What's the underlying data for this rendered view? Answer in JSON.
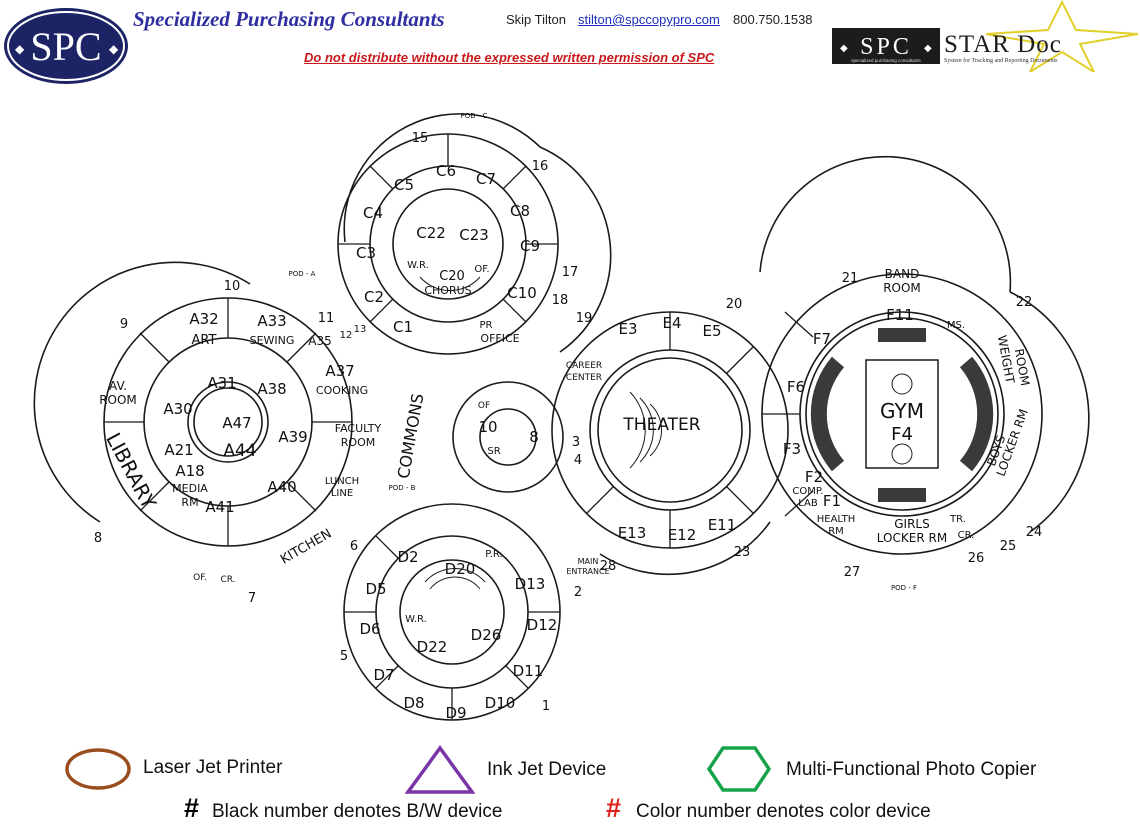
{
  "header": {
    "company_name": "Specialized Purchasing Consultants",
    "contact_name": "Skip Tilton",
    "contact_email": "stilton@spccopypro.com",
    "contact_phone": "800.750.1538",
    "notice": "Do not distribute without the expressed written permission of SPC",
    "logo_text": "SPC",
    "stardoc_logo_text": "STAR Doc",
    "stardoc_spc_text": "SPC",
    "stardoc_tagline": "System for Tracking and Reporting Documents",
    "stardoc_sub": "specialized purchasing consultants"
  },
  "rooms": {
    "pod_a": [
      "A32",
      "ART",
      "A33",
      "SEWING",
      "A35",
      "A37",
      "COOKING",
      "A31",
      "A38",
      "A30",
      "A47",
      "A44",
      "A39",
      "A21",
      "A18",
      "MEDIA",
      "RM",
      "A41",
      "A40",
      "AV.",
      "ROOM",
      "LIBRARY",
      "KITCHEN",
      "LUNCH",
      "LINE",
      "FACULTY",
      "ROOM",
      "OF.",
      "CR."
    ],
    "pod_c": [
      "C5",
      "C6",
      "C7",
      "C8",
      "C4",
      "C22",
      "C23",
      "C9",
      "C3",
      "C2",
      "C20",
      "CHORUS",
      "W.R.",
      "OF.",
      "C10",
      "C1",
      "PR",
      "OFFICE"
    ],
    "pod_e": [
      "E3",
      "E4",
      "E5",
      "THEATER",
      "E13",
      "E12",
      "E11",
      "CAREER",
      "CENTER",
      "10",
      "8",
      "SR",
      "OF"
    ],
    "pod_f": [
      "BAND",
      "ROOM",
      "F11",
      "MS.",
      "F7",
      "F6",
      "GYM",
      "F4",
      "F3",
      "F2",
      "COMP.",
      "LAB",
      "F1",
      "HEALTH",
      "RM",
      "WEIGHT",
      "ROOM",
      "BOYS",
      "LOCKER RM",
      "GIRLS",
      "LOCKER RM",
      "TR.",
      "CR."
    ],
    "pod_d": [
      "D2",
      "D5",
      "D6",
      "D7",
      "D8",
      "D9",
      "D10",
      "D11",
      "D12",
      "D13",
      "D20",
      "D22",
      "D26",
      "W.R.",
      "P.R.",
      "MAIN",
      "ENTRANCE"
    ],
    "commons": "COMMONS",
    "pod_labels": [
      "POD - A",
      "POD - B",
      "POD - C",
      "POD - F"
    ],
    "numbers": [
      "1",
      "2",
      "3",
      "4",
      "5",
      "6",
      "7",
      "8",
      "9",
      "10",
      "11",
      "12",
      "13",
      "15",
      "16",
      "17",
      "18",
      "19",
      "20",
      "21",
      "22",
      "23",
      "24",
      "25",
      "26",
      "27",
      "28"
    ]
  },
  "legend": {
    "laser": "Laser Jet Printer",
    "inkjet": "Ink Jet Device",
    "mfp": "Multi-Functional Photo Copier",
    "bw_mark": "#",
    "bw_note": "Black number denotes B/W device",
    "color_mark": "#",
    "color_note": "Color number denotes color device",
    "colors": {
      "laser": "#9a4e1e",
      "inkjet": "#7a35a8",
      "mfp": "#17a34a",
      "color_device": "#e0201c",
      "bw_device": "#000000"
    }
  }
}
